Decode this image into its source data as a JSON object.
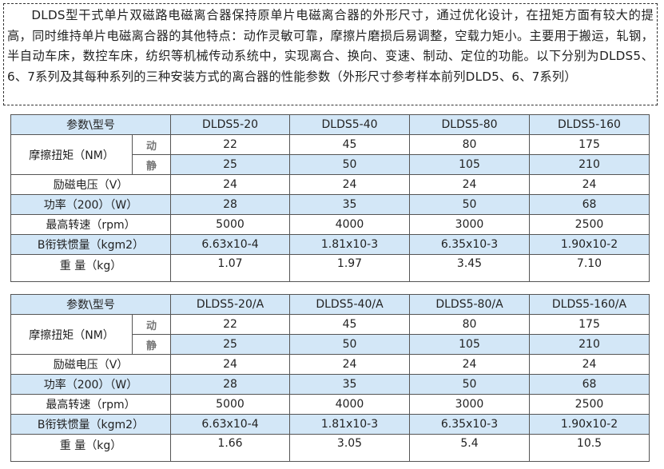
{
  "intro": "DLDS型干式单片双磁路电磁离合器保持原单片电磁离合器的外形尺寸，通过优化设计，在扭矩方面有较大的提高，同时维持单片电磁离合器的其他特点：动作灵敏可靠，摩擦片磨损后易调整，空载力矩小。主要用于搬运，轧钢，半自动车床，数控车床，纺织等机械传动系统中，实现离合、换向、变速、制动、定位的功能。以下分别为DLDS5、6、7系列及其每种系列的三种安装方式的离合器的性能参数（外形尺寸参考样本前列DLD5、6、7系列）",
  "colors": {
    "header_bg": "#d3e7f7",
    "border": "#555555"
  },
  "tables": [
    {
      "header_label": "参数\\型号",
      "models": [
        "DLDS5-20",
        "DLDS5-40",
        "DLDS5-80",
        "DLDS5-160"
      ],
      "torque_label": "摩擦扭矩（NM）",
      "dynamic_label": "动",
      "static_label": "静",
      "dynamic": [
        "22",
        "45",
        "80",
        "175"
      ],
      "static": [
        "25",
        "50",
        "105",
        "210"
      ],
      "rows": [
        {
          "label": "励磁电压（V）",
          "values": [
            "24",
            "24",
            "24",
            "24"
          ]
        },
        {
          "label": "功率（200）（W）",
          "values": [
            "28",
            "35",
            "50",
            "68"
          ]
        },
        {
          "label": "最高转速（rpm）",
          "values": [
            "5000",
            "4000",
            "3000",
            "2500"
          ]
        },
        {
          "label": "B衔铁惯量（kgm2）",
          "values": [
            "6.63x10-4",
            "1.81x10-3",
            "6.35x10-3",
            "1.90x10-2"
          ]
        },
        {
          "label": "重 量（kg）",
          "values": [
            "1.07",
            "1.97",
            "3.45",
            "7.10"
          ]
        }
      ]
    },
    {
      "header_label": "参数\\型号",
      "models": [
        "DLDS5-20/A",
        "DLDS5-40/A",
        "DLDS5-80/A",
        "DLDS5-160/A"
      ],
      "torque_label": "摩擦扭矩（NM）",
      "dynamic_label": "动",
      "static_label": "静",
      "dynamic": [
        "22",
        "45",
        "80",
        "175"
      ],
      "static": [
        "25",
        "50",
        "105",
        "210"
      ],
      "rows": [
        {
          "label": "励磁电压（V）",
          "values": [
            "24",
            "24",
            "24",
            "24"
          ]
        },
        {
          "label": "功率（200）（W）",
          "values": [
            "28",
            "35",
            "50",
            "68"
          ]
        },
        {
          "label": "最高转速（rpm）",
          "values": [
            "5000",
            "4000",
            "3000",
            "2500"
          ]
        },
        {
          "label": "B衔铁惯量（kgm2）",
          "values": [
            "6.63x10-4",
            "1.81x10-3",
            "6.35x10-3",
            "1.90x10-2"
          ]
        },
        {
          "label": "重 量（kg）",
          "values": [
            "1.66",
            "3.05",
            "5.4",
            "10.5"
          ]
        }
      ]
    }
  ]
}
